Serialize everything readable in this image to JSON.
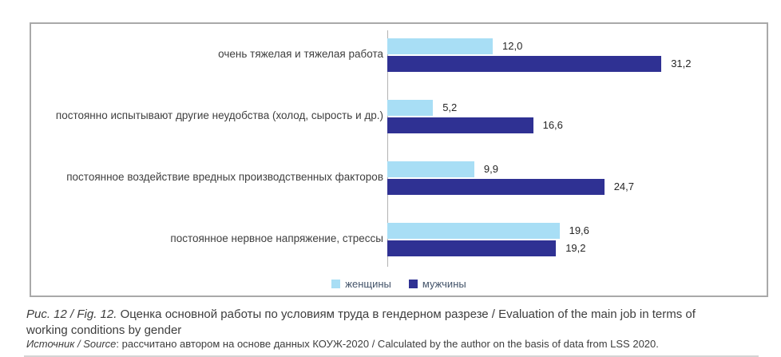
{
  "chart_data": {
    "type": "bar",
    "orientation": "horizontal",
    "categories": [
      "очень тяжелая и тяжелая работа",
      "постоянно испытывают другие неудобства (холод, сырость и др.)",
      "постоянное воздействие вредных производственных факторов",
      "постоянное нервное напряжение, стрессы"
    ],
    "series": [
      {
        "name": "женщины",
        "color": "#a8def5",
        "values": [
          12.0,
          5.2,
          9.9,
          19.6
        ],
        "labels": [
          "12,0",
          "5,2",
          "9,9",
          "19,6"
        ]
      },
      {
        "name": "мужчины",
        "color": "#2f3193",
        "values": [
          31.2,
          16.6,
          24.7,
          19.2
        ],
        "labels": [
          "31,2",
          "16,6",
          "24,7",
          "19,2"
        ]
      }
    ],
    "xlim": [
      0,
      35
    ],
    "grid": false,
    "legend_position": "bottom",
    "value_labels": "outside-end"
  },
  "caption": {
    "prefix": "Рис. 12 / Fig. 12.",
    "text": " Оценка основной работы по условиям труда в гендерном разрезе / Evaluation of the main job in terms of working conditions by gender"
  },
  "source": {
    "prefix": "Источник / Source",
    "text": ": рассчитано автором на основе данных КОУЖ-2020 / Calculated by the author on the basis of data from LSS 2020."
  },
  "colors": {
    "axis": "#b3b3b3",
    "panel_border": "#a9a9a9"
  }
}
